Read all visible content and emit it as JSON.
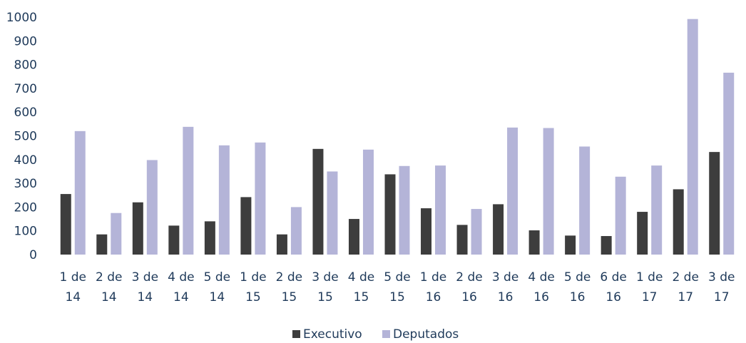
{
  "chart_data": {
    "type": "bar",
    "categories": [
      "1 de 14",
      "2 de 14",
      "3 de 14",
      "4 de 14",
      "5 de 14",
      "1 de 15",
      "2 de 15",
      "3 de 15",
      "4 de 15",
      "5 de 15",
      "1 de 16",
      "2 de 16",
      "3 de 16",
      "4 de 16",
      "5 de 16",
      "6 de 16",
      "1 de 17",
      "2 de 17",
      "3 de 17"
    ],
    "category_lines": [
      [
        "1 de",
        "14"
      ],
      [
        "2 de",
        "14"
      ],
      [
        "3 de",
        "14"
      ],
      [
        "4 de",
        "14"
      ],
      [
        "5 de",
        "14"
      ],
      [
        "1 de",
        "15"
      ],
      [
        "2 de",
        "15"
      ],
      [
        "3 de",
        "15"
      ],
      [
        "4 de",
        "15"
      ],
      [
        "5 de",
        "15"
      ],
      [
        "1 de",
        "16"
      ],
      [
        "2 de",
        "16"
      ],
      [
        "3 de",
        "16"
      ],
      [
        "4 de",
        "16"
      ],
      [
        "5 de",
        "16"
      ],
      [
        "6 de",
        "16"
      ],
      [
        "1 de",
        "17"
      ],
      [
        "2 de",
        "17"
      ],
      [
        "3 de",
        "17"
      ]
    ],
    "series": [
      {
        "name": "Executivo",
        "color": "#3d3d3d",
        "values": [
          255,
          85,
          220,
          122,
          140,
          242,
          85,
          445,
          150,
          338,
          195,
          125,
          212,
          102,
          80,
          78,
          180,
          275,
          432
        ]
      },
      {
        "name": "Deputados",
        "color": "#b4b4d8",
        "values": [
          520,
          175,
          398,
          538,
          460,
          472,
          200,
          350,
          442,
          373,
          375,
          192,
          535,
          533,
          455,
          328,
          375,
          992,
          766
        ]
      }
    ],
    "yticks": [
      "0",
      "100",
      "200",
      "300",
      "400",
      "500",
      "600",
      "700",
      "800",
      "900",
      "1000"
    ],
    "ylim": [
      0,
      1000
    ],
    "grid": false,
    "legend_position": "bottom-center"
  }
}
